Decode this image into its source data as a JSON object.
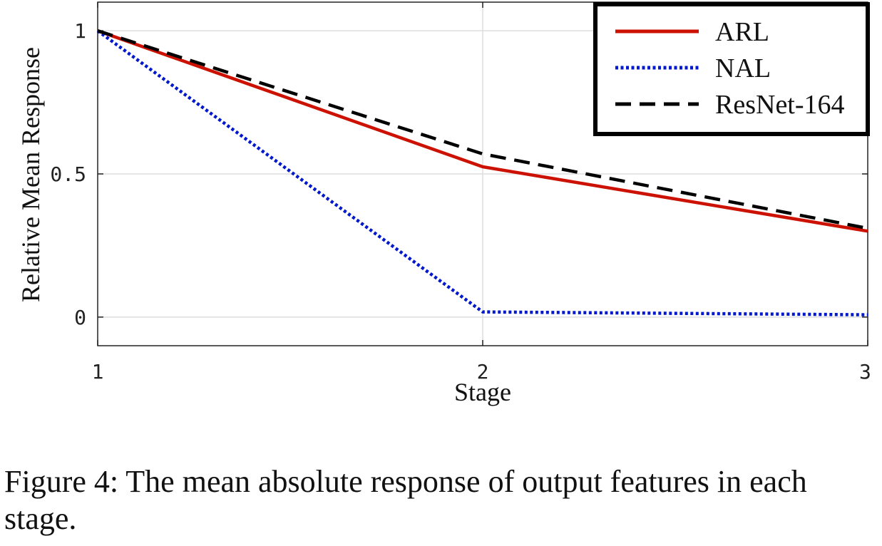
{
  "chart_data": {
    "type": "line",
    "xlabel": "Stage",
    "ylabel": "Relative Mean Response",
    "x": [
      1,
      2,
      3
    ],
    "xticks": [
      "1",
      "2",
      "3"
    ],
    "yticks": [
      "0",
      "0.5",
      "1"
    ],
    "xlim": [
      1,
      3
    ],
    "ylim": [
      -0.1,
      1.1
    ],
    "grid": true,
    "legend_position": "top-right",
    "series": [
      {
        "name": "ARL",
        "values": [
          1.0,
          0.525,
          0.3
        ],
        "color": "#cc1100",
        "style": "solid"
      },
      {
        "name": "NAL",
        "values": [
          1.0,
          0.018,
          0.008
        ],
        "color": "#0018cc",
        "style": "dotted"
      },
      {
        "name": "ResNet-164",
        "values": [
          1.0,
          0.57,
          0.31
        ],
        "color": "#000000",
        "style": "dashed"
      }
    ]
  },
  "caption": "Figure 4: The mean absolute response of output features in each stage."
}
